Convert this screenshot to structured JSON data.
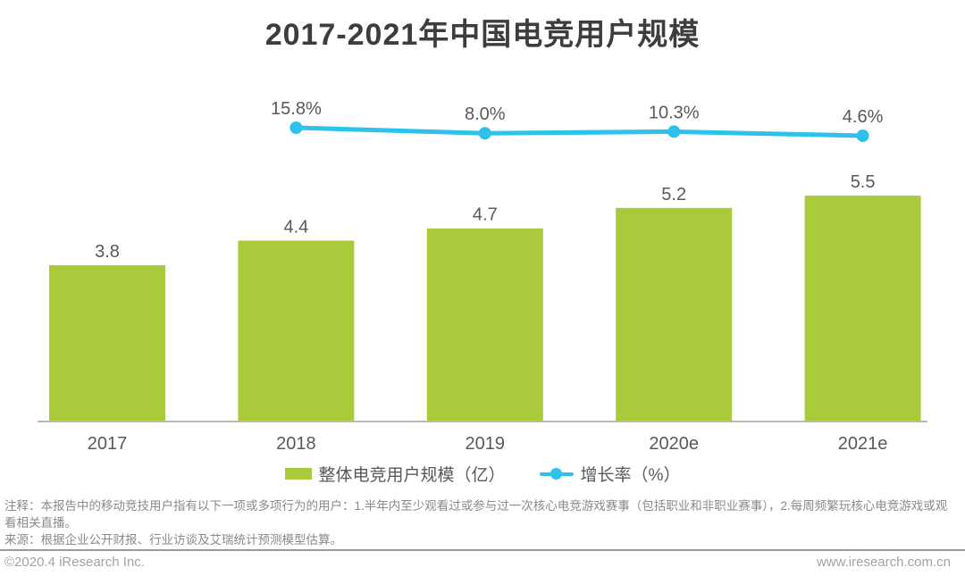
{
  "chart_data": {
    "type": "bar",
    "title": "2017-2021年中国电竞用户规模",
    "categories": [
      "2017",
      "2018",
      "2019",
      "2020e",
      "2021e"
    ],
    "series": [
      {
        "name": "整体电竞用户规模（亿）",
        "type": "bar",
        "values": [
          3.8,
          4.4,
          4.7,
          5.2,
          5.5
        ],
        "labels": [
          "3.8",
          "4.4",
          "4.7",
          "5.2",
          "5.5"
        ],
        "color": "#a9cb3b"
      },
      {
        "name": "增长率（%）",
        "type": "line",
        "values": [
          null,
          15.8,
          8.0,
          10.3,
          4.6
        ],
        "labels": [
          null,
          "15.8%",
          "8.0%",
          "10.3%",
          "4.6%"
        ],
        "color": "#2cc2ec"
      }
    ],
    "legend_position": "bottom",
    "grid": false,
    "axes_hidden": true
  },
  "notes": {
    "line1": "注释：本报告中的移动竞技用户指有以下一项或多项行为的用户：1.半年内至少观看过或参与过一次核心电竞游戏赛事（包括职业和非职业赛事），2.每周频繁玩核心电竞游戏或观",
    "line2": "看相关直播。",
    "source": "来源：根据企业公开财报、行业访谈及艾瑞统计预测模型估算。"
  },
  "footer": {
    "copyright": "©2020.4 iResearch Inc.",
    "website": "www.iresearch.com.cn"
  },
  "colors": {
    "bar": "#a9cb3b",
    "line": "#2cc2ec",
    "axis_line": "#b7b7b7",
    "value_text": "#595959",
    "title_text": "#3d3d3d",
    "notes_text": "#8a8a8a",
    "divider": "#9b9b9b",
    "footer_text": "#a3a3a3",
    "background": "#ffffff"
  }
}
